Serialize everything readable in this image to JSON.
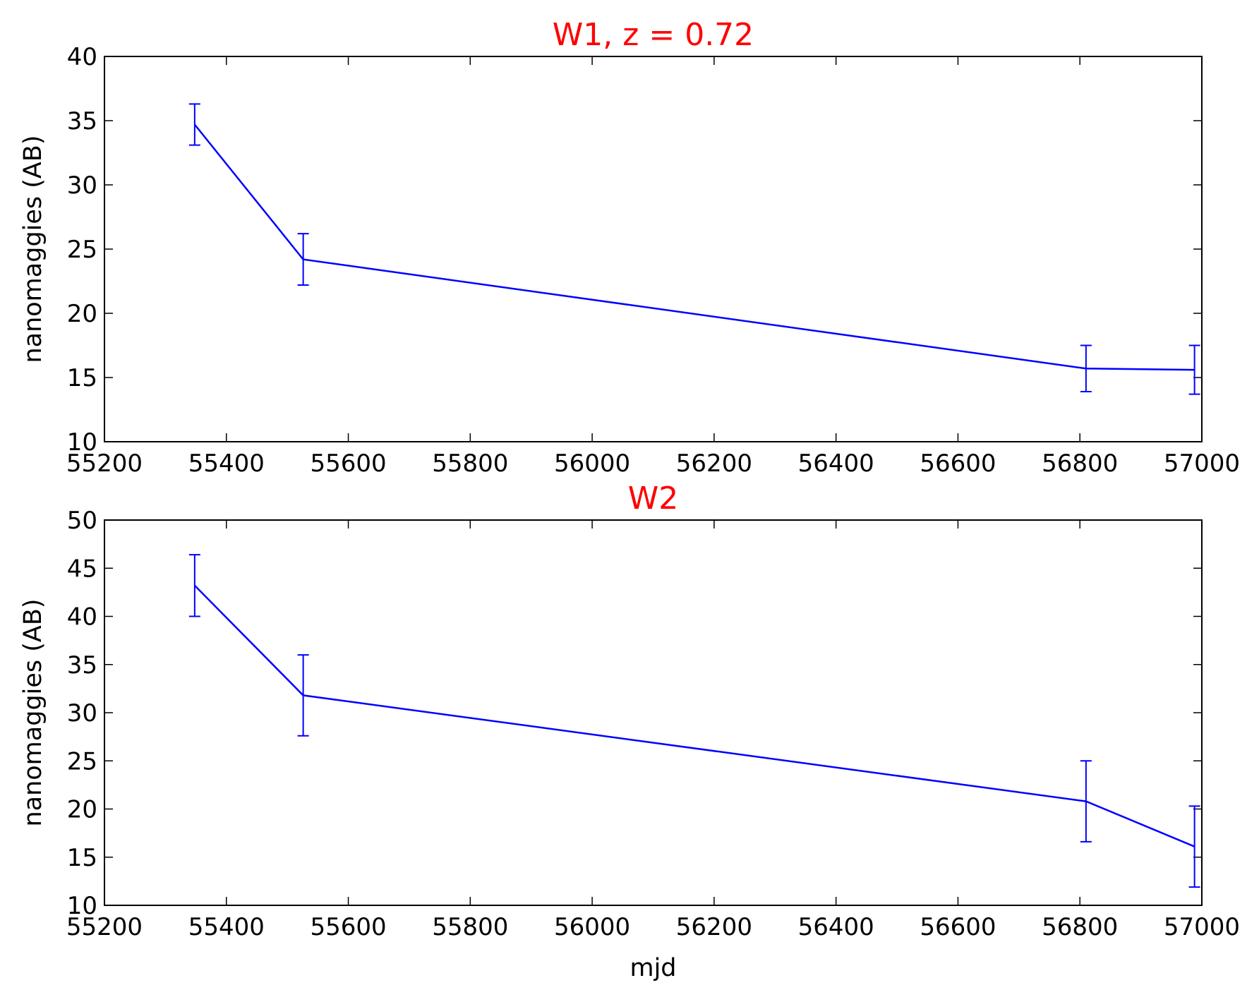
{
  "chart_data": [
    {
      "type": "line",
      "title": "W1, z = 0.72",
      "title_color": "#ff0000",
      "xlabel": "",
      "ylabel": "nanomaggies (AB)",
      "xlim": [
        55200,
        57000
      ],
      "ylim": [
        10,
        40
      ],
      "xticks": [
        55200,
        55400,
        55600,
        55800,
        56000,
        56200,
        56400,
        56600,
        56800,
        57000
      ],
      "yticks": [
        10,
        15,
        20,
        25,
        30,
        35,
        40
      ],
      "grid": false,
      "line_color": "#0000ff",
      "series": [
        {
          "x": [
            55348,
            55526,
            56810,
            56988
          ],
          "y": [
            34.7,
            24.2,
            15.7,
            15.6
          ],
          "yerr": [
            1.6,
            2.0,
            1.8,
            1.9
          ]
        }
      ]
    },
    {
      "type": "line",
      "title": "W2",
      "title_color": "#ff0000",
      "xlabel": "mjd",
      "ylabel": "nanomaggies (AB)",
      "xlim": [
        55200,
        57000
      ],
      "ylim": [
        10,
        50
      ],
      "xticks": [
        55200,
        55400,
        55600,
        55800,
        56000,
        56200,
        56400,
        56600,
        56800,
        57000
      ],
      "yticks": [
        10,
        15,
        20,
        25,
        30,
        35,
        40,
        45,
        50
      ],
      "grid": false,
      "line_color": "#0000ff",
      "series": [
        {
          "x": [
            55348,
            55526,
            56810,
            56988
          ],
          "y": [
            43.2,
            31.8,
            20.8,
            16.1
          ],
          "yerr": [
            3.2,
            4.2,
            4.2,
            4.2
          ]
        }
      ]
    }
  ]
}
